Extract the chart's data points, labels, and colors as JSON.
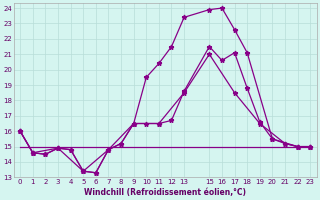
{
  "xlabel": "Windchill (Refroidissement éolien,°C)",
  "bg_color": "#d5f5f0",
  "grid_color": "#b8ddd8",
  "line_color": "#880088",
  "xlim": [
    -0.5,
    23.5
  ],
  "ylim": [
    13,
    24.3
  ],
  "yticks": [
    13,
    14,
    15,
    16,
    17,
    18,
    19,
    20,
    21,
    22,
    23,
    24
  ],
  "xticks": [
    0,
    1,
    2,
    3,
    4,
    5,
    6,
    7,
    8,
    9,
    10,
    11,
    12,
    13,
    15,
    16,
    17,
    18,
    19,
    20,
    21,
    22,
    23
  ],
  "line1_x": [
    0,
    1,
    2,
    3,
    4,
    5,
    6,
    7,
    8,
    9,
    10,
    11,
    12,
    13,
    15,
    16,
    17,
    18,
    20,
    21,
    22,
    23
  ],
  "line1_y": [
    16.0,
    14.6,
    14.5,
    14.9,
    14.8,
    13.4,
    13.3,
    14.8,
    15.2,
    16.5,
    19.5,
    20.4,
    21.5,
    23.4,
    23.9,
    24.0,
    22.6,
    21.1,
    15.5,
    15.2,
    15.0,
    15.0
  ],
  "line2_x": [
    0,
    1,
    2,
    3,
    4,
    5,
    6,
    7,
    8,
    9,
    10,
    11,
    12,
    13,
    15,
    16,
    17,
    18,
    19,
    20,
    22,
    23
  ],
  "line2_y": [
    16.0,
    14.6,
    14.5,
    14.9,
    14.8,
    13.4,
    13.3,
    14.8,
    15.2,
    16.5,
    16.5,
    16.5,
    16.7,
    18.6,
    21.5,
    20.6,
    21.1,
    18.8,
    16.6,
    15.5,
    15.0,
    15.0
  ],
  "line3_x": [
    0,
    1,
    3,
    5,
    7,
    9,
    11,
    13,
    15,
    17,
    19,
    21,
    22,
    23
  ],
  "line3_y": [
    16.0,
    14.6,
    14.9,
    13.4,
    14.8,
    16.5,
    16.5,
    18.5,
    21.0,
    18.5,
    16.5,
    15.2,
    15.0,
    15.0
  ],
  "line4_x": [
    0,
    23
  ],
  "line4_y": [
    15.0,
    15.0
  ]
}
